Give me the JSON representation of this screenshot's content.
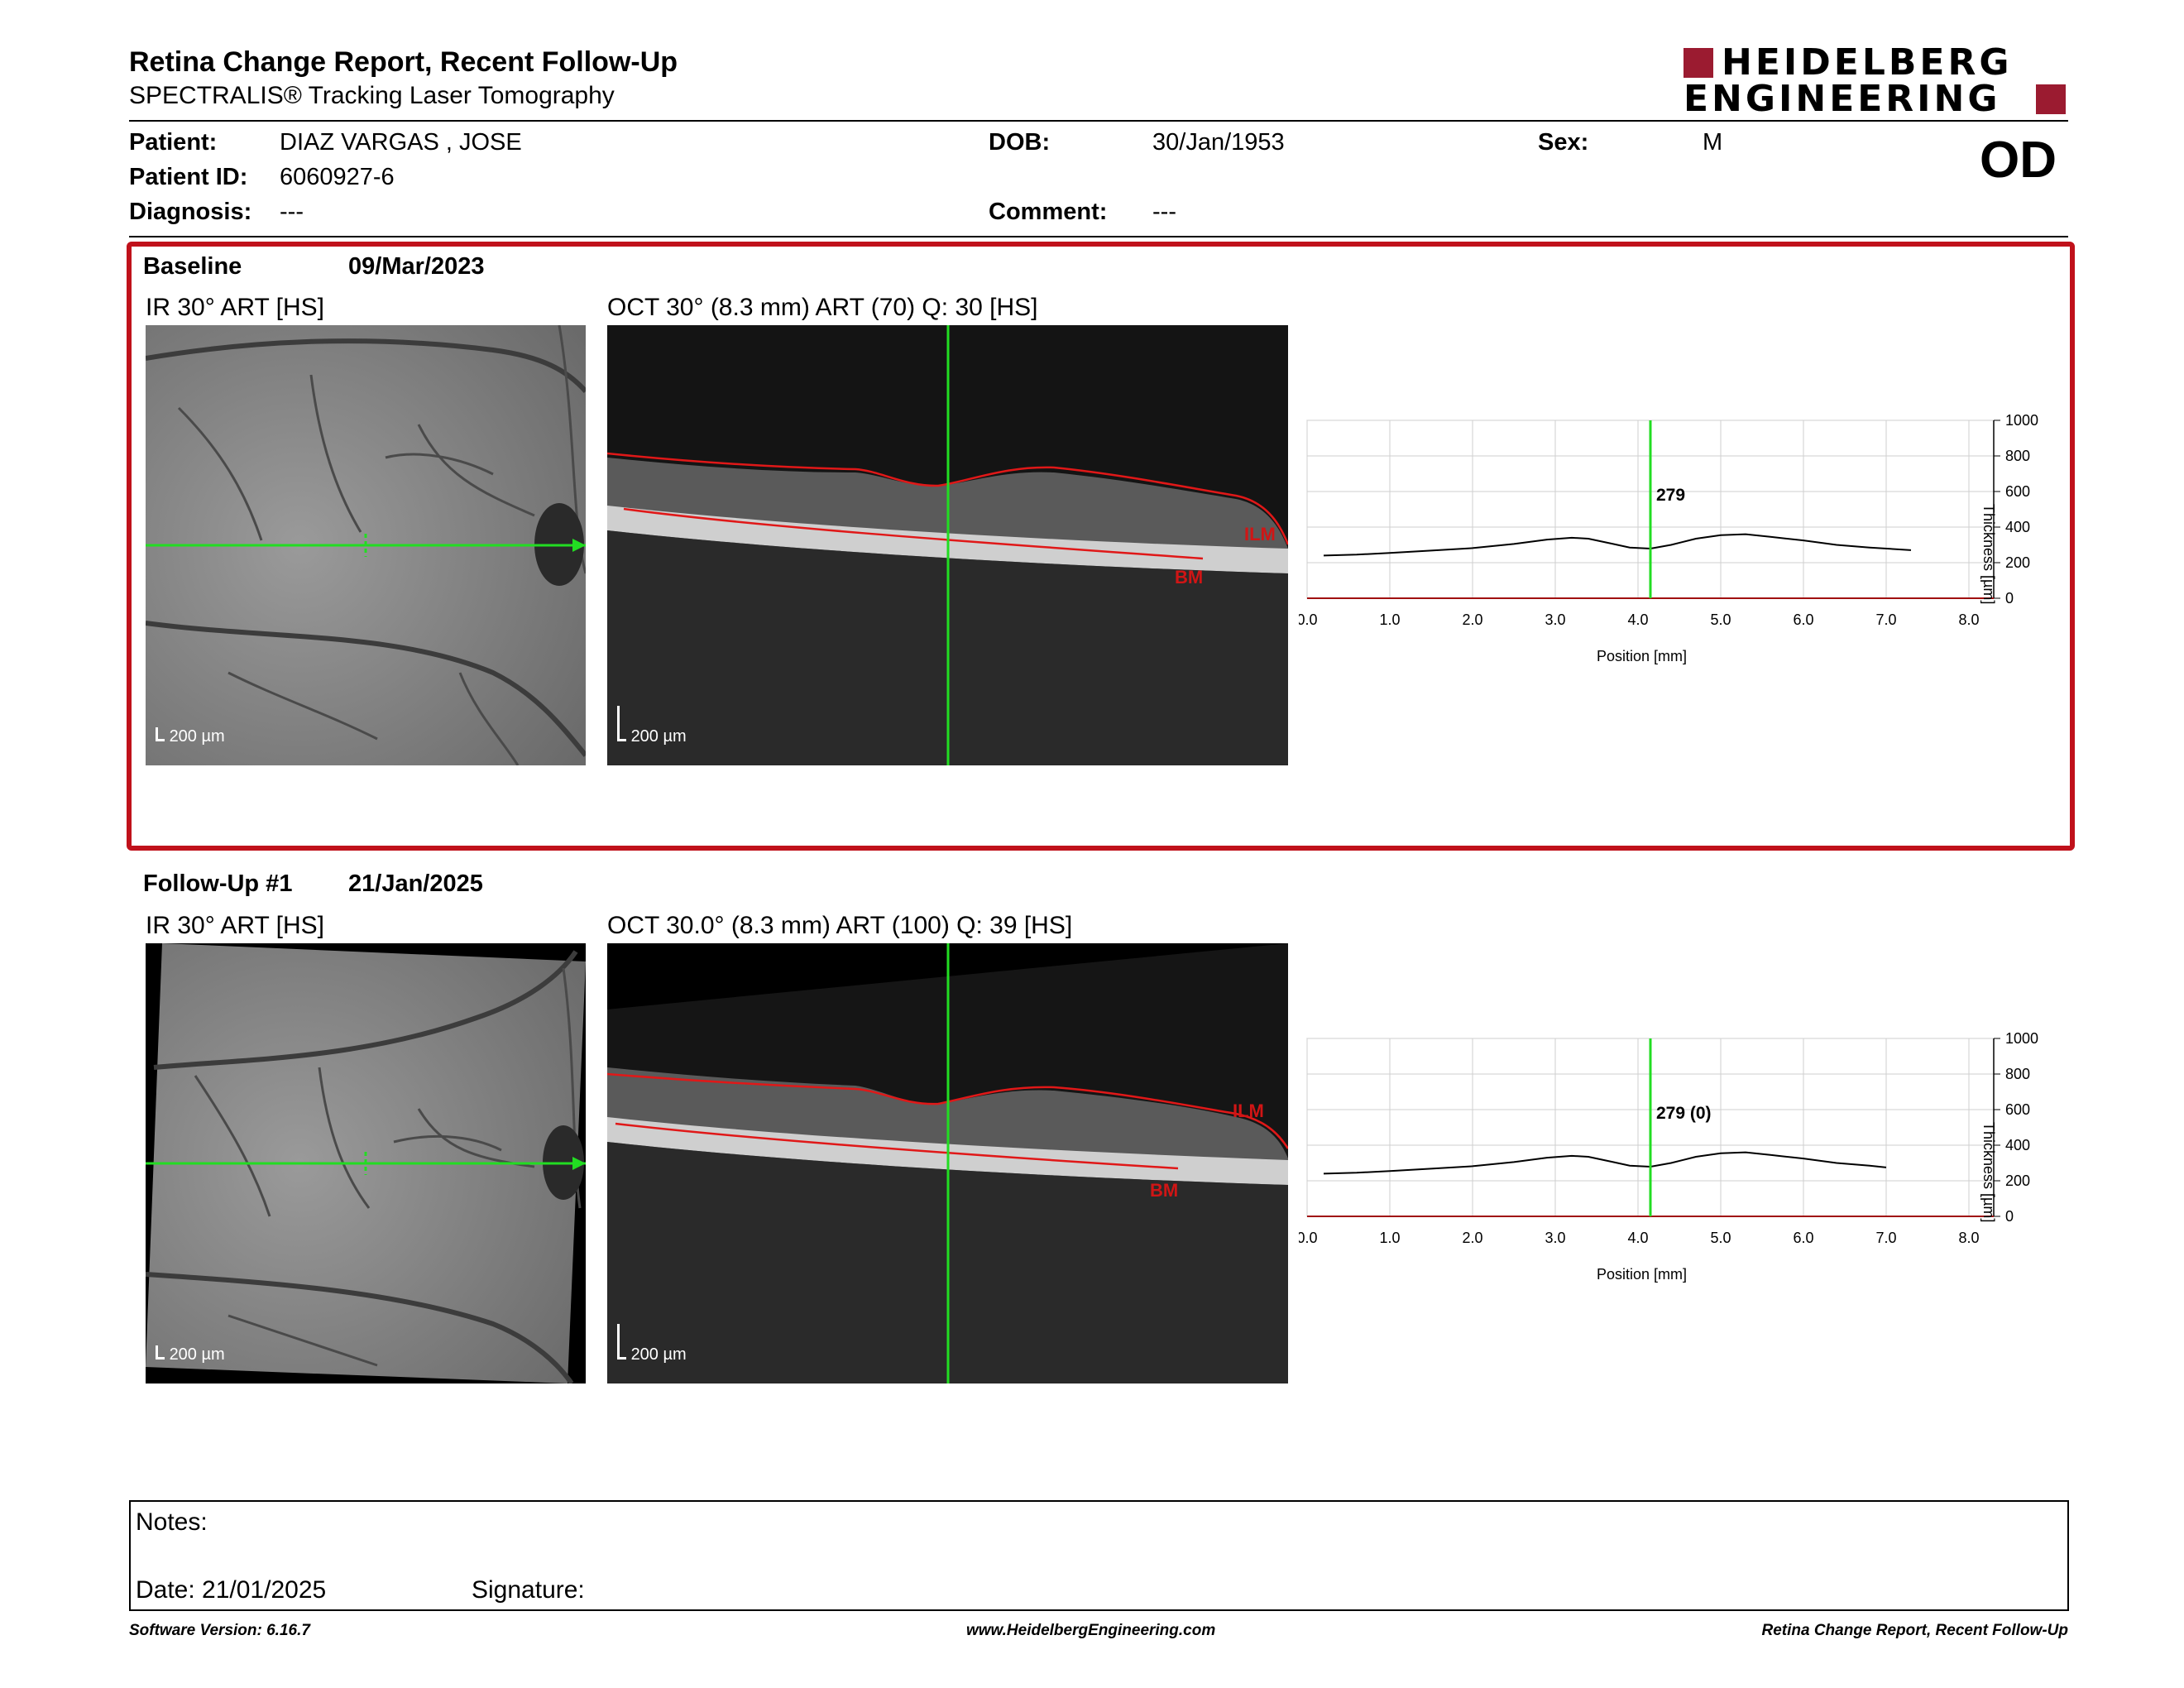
{
  "header": {
    "title": "Retina Change Report, Recent Follow-Up",
    "subtitle": "SPECTRALIS® Tracking Laser Tomography",
    "logo_line1": "HEIDELBERG",
    "logo_line2": "ENGINEERING",
    "brand_color": "#9b1b30"
  },
  "patient": {
    "name_label": "Patient:",
    "name": "DIAZ VARGAS , JOSE",
    "id_label": "Patient ID:",
    "id": "6060927-6",
    "diagnosis_label": "Diagnosis:",
    "diagnosis": "---",
    "dob_label": "DOB:",
    "dob": "30/Jan/1953",
    "comment_label": "Comment:",
    "comment": "---",
    "sex_label": "Sex:",
    "sex": "M",
    "eye": "OD"
  },
  "baseline": {
    "label": "Baseline",
    "date": "09/Mar/2023",
    "ir_title": "IR 30° ART [HS]",
    "oct_title": "OCT 30° (8.3 mm) ART (70) Q: 30 [HS]",
    "scale": "200 µm",
    "ilm": "ILM",
    "bm": "BM",
    "marker_value": "279"
  },
  "followup": {
    "label": "Follow-Up #1",
    "date": "21/Jan/2025",
    "ir_title": "IR 30° ART [HS]",
    "oct_title": "OCT 30.0° (8.3 mm) ART (100) Q: 39 [HS]",
    "scale": "200 µm",
    "ilm": "ILM",
    "bm": "BM",
    "marker_value": "279 (0)"
  },
  "chart_data": [
    {
      "type": "line",
      "title": "",
      "xlabel": "Position [mm]",
      "ylabel": "Thickness [µm]",
      "xlim": [
        0,
        8.3
      ],
      "ylim": [
        0,
        1000
      ],
      "x_ticks": [
        "0.0",
        "1.0",
        "2.0",
        "3.0",
        "4.0",
        "5.0",
        "6.0",
        "7.0",
        "8.0"
      ],
      "y_ticks": [
        "0",
        "200",
        "400",
        "600",
        "800",
        "1000"
      ],
      "grid": true,
      "marker_x": 4.15,
      "marker_label": "279",
      "series": [
        {
          "x": [
            0.2,
            0.6,
            1.0,
            1.5,
            2.0,
            2.5,
            2.9,
            3.2,
            3.4,
            3.7,
            3.9,
            4.15,
            4.4,
            4.7,
            5.0,
            5.3,
            5.6,
            6.0,
            6.4,
            6.8,
            7.3
          ],
          "values": [
            240,
            245,
            255,
            268,
            282,
            305,
            330,
            340,
            335,
            305,
            285,
            279,
            300,
            335,
            355,
            360,
            345,
            325,
            300,
            285,
            270
          ]
        }
      ]
    },
    {
      "type": "line",
      "title": "",
      "xlabel": "Position [mm]",
      "ylabel": "Thickness [µm]",
      "xlim": [
        0,
        8.3
      ],
      "ylim": [
        0,
        1000
      ],
      "x_ticks": [
        "0.0",
        "1.0",
        "2.0",
        "3.0",
        "4.0",
        "5.0",
        "6.0",
        "7.0",
        "8.0"
      ],
      "y_ticks": [
        "0",
        "200",
        "400",
        "600",
        "800",
        "1000"
      ],
      "grid": true,
      "marker_x": 4.15,
      "marker_label": "279 (0)",
      "series": [
        {
          "x": [
            0.2,
            0.6,
            1.0,
            1.5,
            2.0,
            2.5,
            2.9,
            3.2,
            3.4,
            3.7,
            3.9,
            4.15,
            4.4,
            4.7,
            5.0,
            5.3,
            5.6,
            6.0,
            6.4,
            6.8,
            7.0
          ],
          "values": [
            240,
            245,
            255,
            268,
            282,
            305,
            330,
            340,
            335,
            305,
            285,
            279,
            300,
            335,
            355,
            360,
            345,
            325,
            300,
            285,
            275
          ]
        }
      ]
    }
  ],
  "notes": {
    "notes_label": "Notes:",
    "date_label": "Date: 21/01/2025",
    "signature_label": "Signature:"
  },
  "footer": {
    "left": "Software Version: 6.16.7",
    "center": "www.HeidelbergEngineering.com",
    "right": "Retina Change Report, Recent Follow-Up"
  }
}
